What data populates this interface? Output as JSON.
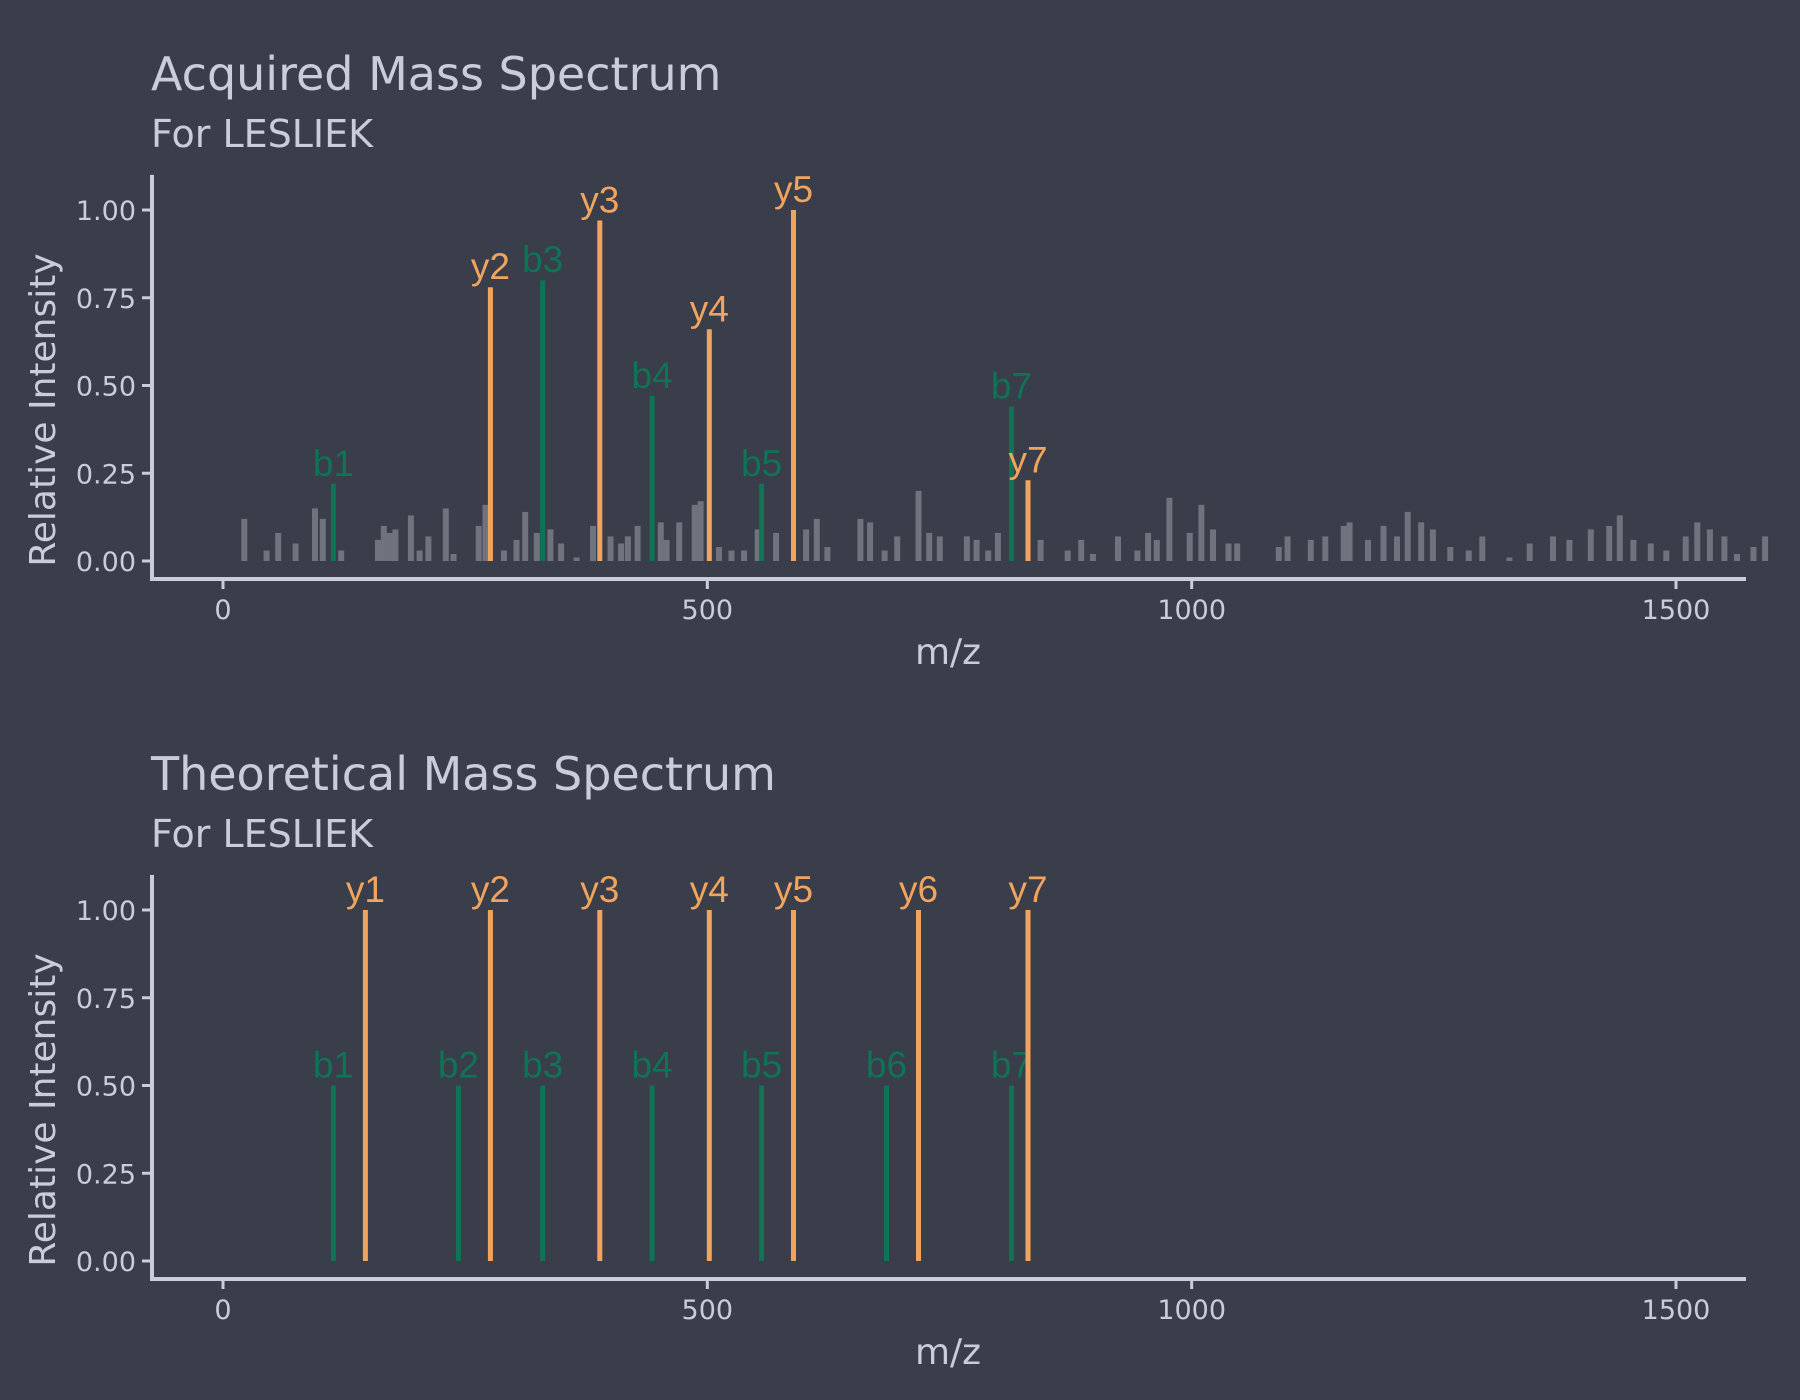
{
  "colors": {
    "background": "#3a3d4a",
    "text": "#c8ccdb",
    "y_ion": "#f0a45e",
    "b_ion": "#0f7355",
    "noise": "#70737d"
  },
  "chart_data": [
    {
      "type": "bar",
      "title": "Acquired Mass Spectrum",
      "subtitle": "For LESLIEK",
      "xlabel": "m/z",
      "ylabel": "Relative Intensity",
      "xlim": [
        -80,
        1680
      ],
      "ylim": [
        0,
        1.1
      ],
      "xticks": [
        0,
        500,
        1000,
        1500
      ],
      "xtick_labels": [
        "0",
        "500",
        "1000",
        "1500"
      ],
      "yticks": [
        0,
        0.25,
        0.5,
        0.75,
        1.0
      ],
      "ytick_labels": [
        "0.00",
        "0.25",
        "0.50",
        "0.75",
        "1.00"
      ],
      "grid": false,
      "legend": "none",
      "series": [
        {
          "ion": "b",
          "peaks": [
            {
              "label": "b1",
              "mz": 114,
              "intensity": 0.22
            },
            {
              "label": "b3",
              "mz": 330,
              "intensity": 0.8
            },
            {
              "label": "b4",
              "mz": 443,
              "intensity": 0.47
            },
            {
              "label": "b5",
              "mz": 556,
              "intensity": 0.22
            },
            {
              "label": "b7",
              "mz": 814,
              "intensity": 0.44
            }
          ]
        },
        {
          "ion": "y",
          "peaks": [
            {
              "label": "y2",
              "mz": 276,
              "intensity": 0.78
            },
            {
              "label": "y3",
              "mz": 389,
              "intensity": 0.97
            },
            {
              "label": "y4",
              "mz": 502,
              "intensity": 0.66
            },
            {
              "label": "y5",
              "mz": 589,
              "intensity": 1.0
            },
            {
              "label": "y7",
              "mz": 831,
              "intensity": 0.23
            }
          ]
        },
        {
          "ion": "unmatched",
          "peaks": [
            {
              "mz": 22,
              "intensity": 0.12
            },
            {
              "mz": 45,
              "intensity": 0.03
            },
            {
              "mz": 57,
              "intensity": 0.08
            },
            {
              "mz": 75,
              "intensity": 0.05
            },
            {
              "mz": 95,
              "intensity": 0.15
            },
            {
              "mz": 103,
              "intensity": 0.12
            },
            {
              "mz": 122,
              "intensity": 0.03
            },
            {
              "mz": 160,
              "intensity": 0.06
            },
            {
              "mz": 166,
              "intensity": 0.1
            },
            {
              "mz": 172,
              "intensity": 0.08
            },
            {
              "mz": 178,
              "intensity": 0.09
            },
            {
              "mz": 194,
              "intensity": 0.13
            },
            {
              "mz": 203,
              "intensity": 0.03
            },
            {
              "mz": 212,
              "intensity": 0.07
            },
            {
              "mz": 230,
              "intensity": 0.15
            },
            {
              "mz": 238,
              "intensity": 0.02
            },
            {
              "mz": 264,
              "intensity": 0.1
            },
            {
              "mz": 271,
              "intensity": 0.16
            },
            {
              "mz": 290,
              "intensity": 0.03
            },
            {
              "mz": 303,
              "intensity": 0.06
            },
            {
              "mz": 312,
              "intensity": 0.14
            },
            {
              "mz": 324,
              "intensity": 0.08
            },
            {
              "mz": 338,
              "intensity": 0.09
            },
            {
              "mz": 349,
              "intensity": 0.05
            },
            {
              "mz": 365,
              "intensity": 0.01
            },
            {
              "mz": 382,
              "intensity": 0.1
            },
            {
              "mz": 400,
              "intensity": 0.07
            },
            {
              "mz": 411,
              "intensity": 0.05
            },
            {
              "mz": 418,
              "intensity": 0.07
            },
            {
              "mz": 428,
              "intensity": 0.1
            },
            {
              "mz": 452,
              "intensity": 0.11
            },
            {
              "mz": 458,
              "intensity": 0.06
            },
            {
              "mz": 471,
              "intensity": 0.11
            },
            {
              "mz": 487,
              "intensity": 0.16
            },
            {
              "mz": 493,
              "intensity": 0.17
            },
            {
              "mz": 512,
              "intensity": 0.04
            },
            {
              "mz": 525,
              "intensity": 0.03
            },
            {
              "mz": 538,
              "intensity": 0.03
            },
            {
              "mz": 552,
              "intensity": 0.09
            },
            {
              "mz": 571,
              "intensity": 0.08
            },
            {
              "mz": 602,
              "intensity": 0.09
            },
            {
              "mz": 613,
              "intensity": 0.12
            },
            {
              "mz": 624,
              "intensity": 0.04
            },
            {
              "mz": 658,
              "intensity": 0.12
            },
            {
              "mz": 668,
              "intensity": 0.11
            },
            {
              "mz": 683,
              "intensity": 0.03
            },
            {
              "mz": 696,
              "intensity": 0.07
            },
            {
              "mz": 718,
              "intensity": 0.2
            },
            {
              "mz": 729,
              "intensity": 0.08
            },
            {
              "mz": 740,
              "intensity": 0.07
            },
            {
              "mz": 768,
              "intensity": 0.07
            },
            {
              "mz": 778,
              "intensity": 0.06
            },
            {
              "mz": 790,
              "intensity": 0.03
            },
            {
              "mz": 800,
              "intensity": 0.08
            },
            {
              "mz": 844,
              "intensity": 0.06
            },
            {
              "mz": 872,
              "intensity": 0.03
            },
            {
              "mz": 886,
              "intensity": 0.06
            },
            {
              "mz": 898,
              "intensity": 0.02
            },
            {
              "mz": 924,
              "intensity": 0.07
            },
            {
              "mz": 944,
              "intensity": 0.03
            },
            {
              "mz": 955,
              "intensity": 0.08
            },
            {
              "mz": 964,
              "intensity": 0.06
            },
            {
              "mz": 977,
              "intensity": 0.18
            },
            {
              "mz": 998,
              "intensity": 0.08
            },
            {
              "mz": 1010,
              "intensity": 0.16
            },
            {
              "mz": 1022,
              "intensity": 0.09
            },
            {
              "mz": 1038,
              "intensity": 0.05
            },
            {
              "mz": 1047,
              "intensity": 0.05
            },
            {
              "mz": 1090,
              "intensity": 0.04
            },
            {
              "mz": 1099,
              "intensity": 0.07
            },
            {
              "mz": 1123,
              "intensity": 0.06
            },
            {
              "mz": 1138,
              "intensity": 0.07
            },
            {
              "mz": 1157,
              "intensity": 0.1
            },
            {
              "mz": 1163,
              "intensity": 0.11
            },
            {
              "mz": 1182,
              "intensity": 0.06
            },
            {
              "mz": 1198,
              "intensity": 0.1
            },
            {
              "mz": 1212,
              "intensity": 0.07
            },
            {
              "mz": 1223,
              "intensity": 0.14
            },
            {
              "mz": 1237,
              "intensity": 0.11
            },
            {
              "mz": 1249,
              "intensity": 0.09
            },
            {
              "mz": 1267,
              "intensity": 0.04
            },
            {
              "mz": 1286,
              "intensity": 0.03
            },
            {
              "mz": 1300,
              "intensity": 0.07
            },
            {
              "mz": 1328,
              "intensity": 0.01
            },
            {
              "mz": 1349,
              "intensity": 0.05
            },
            {
              "mz": 1373,
              "intensity": 0.07
            },
            {
              "mz": 1390,
              "intensity": 0.06
            },
            {
              "mz": 1412,
              "intensity": 0.09
            },
            {
              "mz": 1431,
              "intensity": 0.1
            },
            {
              "mz": 1442,
              "intensity": 0.13
            },
            {
              "mz": 1456,
              "intensity": 0.06
            },
            {
              "mz": 1474,
              "intensity": 0.05
            },
            {
              "mz": 1490,
              "intensity": 0.03
            },
            {
              "mz": 1510,
              "intensity": 0.07
            },
            {
              "mz": 1522,
              "intensity": 0.11
            },
            {
              "mz": 1535,
              "intensity": 0.09
            },
            {
              "mz": 1550,
              "intensity": 0.07
            },
            {
              "mz": 1563,
              "intensity": 0.02
            },
            {
              "mz": 1580,
              "intensity": 0.04
            },
            {
              "mz": 1592,
              "intensity": 0.07
            }
          ]
        }
      ]
    },
    {
      "type": "bar",
      "title": "Theoretical Mass Spectrum",
      "subtitle": "For LESLIEK",
      "xlabel": "m/z",
      "ylabel": "Relative Intensity",
      "xlim": [
        -80,
        1680
      ],
      "ylim": [
        0,
        1.1
      ],
      "xticks": [
        0,
        500,
        1000,
        1500
      ],
      "xtick_labels": [
        "0",
        "500",
        "1000",
        "1500"
      ],
      "yticks": [
        0,
        0.25,
        0.5,
        0.75,
        1.0
      ],
      "ytick_labels": [
        "0.00",
        "0.25",
        "0.50",
        "0.75",
        "1.00"
      ],
      "grid": false,
      "legend": "none",
      "series": [
        {
          "ion": "b",
          "peaks": [
            {
              "label": "b1",
              "mz": 114,
              "intensity": 0.5
            },
            {
              "label": "b2",
              "mz": 243,
              "intensity": 0.5
            },
            {
              "label": "b3",
              "mz": 330,
              "intensity": 0.5
            },
            {
              "label": "b4",
              "mz": 443,
              "intensity": 0.5
            },
            {
              "label": "b5",
              "mz": 556,
              "intensity": 0.5
            },
            {
              "label": "b6",
              "mz": 685,
              "intensity": 0.5
            },
            {
              "label": "b7",
              "mz": 814,
              "intensity": 0.5
            }
          ]
        },
        {
          "ion": "y",
          "peaks": [
            {
              "label": "y1",
              "mz": 147,
              "intensity": 1.0
            },
            {
              "label": "y2",
              "mz": 276,
              "intensity": 1.0
            },
            {
              "label": "y3",
              "mz": 389,
              "intensity": 1.0
            },
            {
              "label": "y4",
              "mz": 502,
              "intensity": 1.0
            },
            {
              "label": "y5",
              "mz": 589,
              "intensity": 1.0
            },
            {
              "label": "y6",
              "mz": 718,
              "intensity": 1.0
            },
            {
              "label": "y7",
              "mz": 831,
              "intensity": 1.0
            }
          ]
        }
      ]
    }
  ]
}
